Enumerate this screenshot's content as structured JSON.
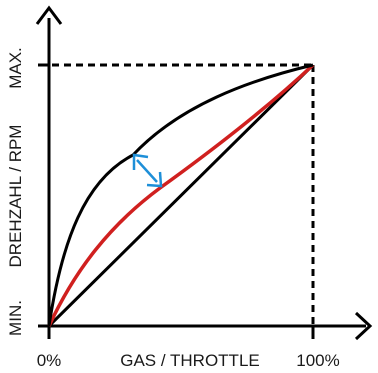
{
  "colors": {
    "axis": "#000000",
    "guide": "#000000",
    "upper_curve": "#000000",
    "red_curve": "#d0201f",
    "linear": "#000000",
    "arrow": "#1e8fd8"
  },
  "x_axis": {
    "label": "GAS / THROTTLE",
    "min_label": "0%",
    "max_label": "100%"
  },
  "y_axis": {
    "label": "DREHZAHL / RPM",
    "min_label": "MIN.",
    "max_label": "MAX."
  }
}
